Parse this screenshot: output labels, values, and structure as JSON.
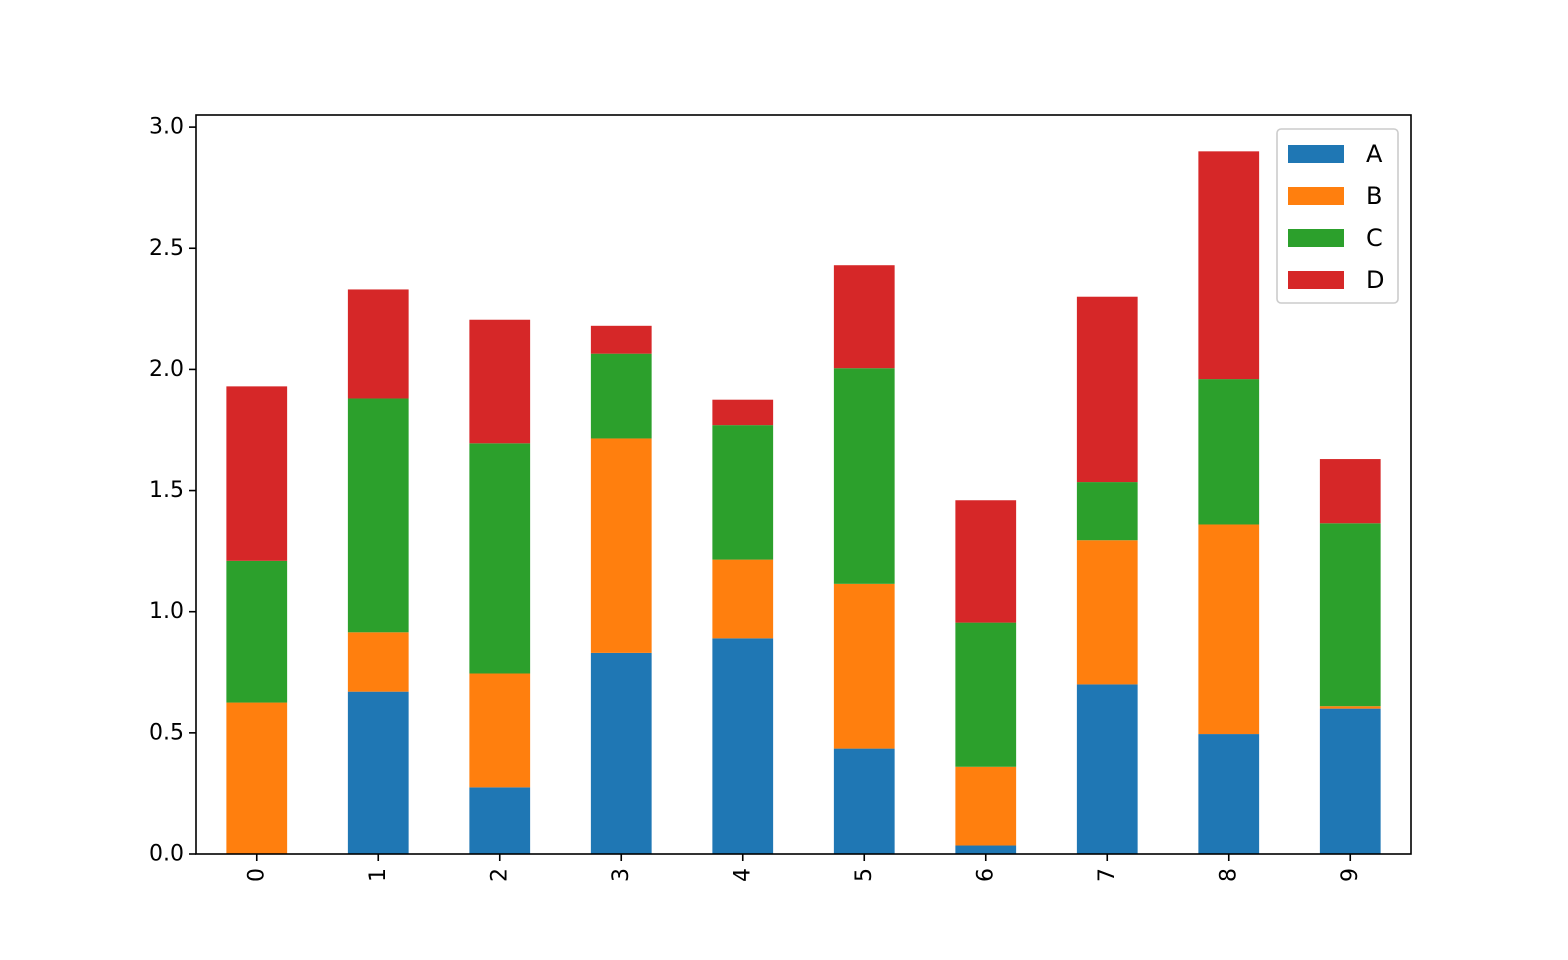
{
  "chart_data": {
    "type": "bar",
    "stacked": true,
    "title": "",
    "xlabel": "",
    "ylabel": "",
    "categories": [
      "0",
      "1",
      "2",
      "3",
      "4",
      "5",
      "6",
      "7",
      "8",
      "9"
    ],
    "series": [
      {
        "name": "A",
        "color": "#1f77b4",
        "values": [
          0.0,
          0.67,
          0.275,
          0.83,
          0.89,
          0.435,
          0.035,
          0.7,
          0.495,
          0.6
        ]
      },
      {
        "name": "B",
        "color": "#ff7f0e",
        "values": [
          0.625,
          0.245,
          0.47,
          0.885,
          0.325,
          0.68,
          0.325,
          0.595,
          0.865,
          0.01
        ]
      },
      {
        "name": "C",
        "color": "#2ca02c",
        "values": [
          0.585,
          0.965,
          0.95,
          0.35,
          0.555,
          0.89,
          0.595,
          0.24,
          0.6,
          0.755
        ]
      },
      {
        "name": "D",
        "color": "#d62728",
        "values": [
          0.72,
          0.45,
          0.51,
          0.115,
          0.105,
          0.425,
          0.505,
          0.765,
          0.94,
          0.265
        ]
      }
    ],
    "ylim": [
      0,
      3.05
    ],
    "yticks": [
      "0.0",
      "0.5",
      "1.0",
      "1.5",
      "2.0",
      "2.5",
      "3.0"
    ],
    "grid": false,
    "legend": "top-right"
  }
}
